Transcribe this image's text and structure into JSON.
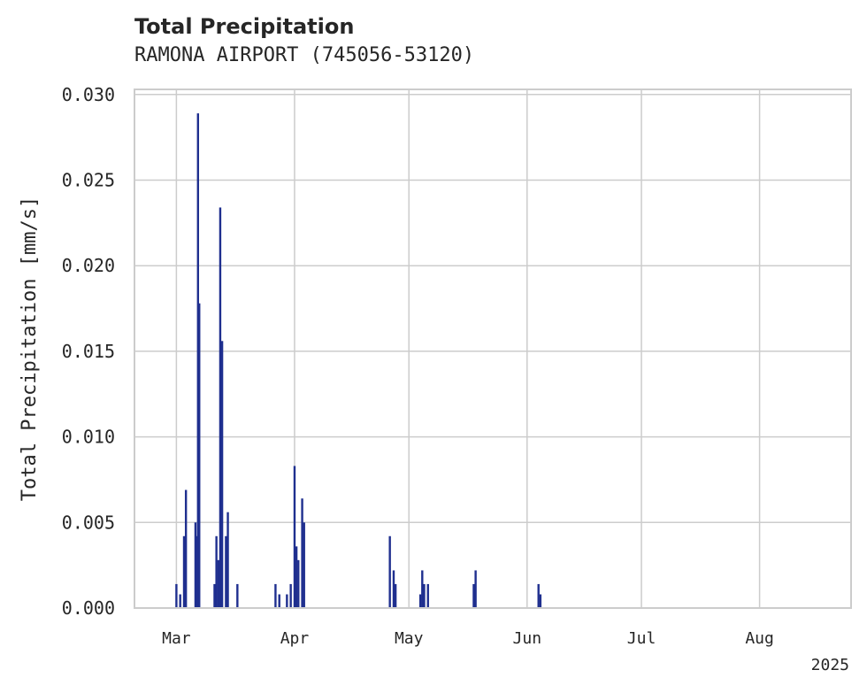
{
  "chart_data": {
    "type": "bar",
    "title": "Total Precipitation",
    "subtitle": "RAMONA AIRPORT (745056-53120)",
    "ylabel": "Total Precipitation [mm/s]",
    "xlabel": "",
    "year_label": "2025",
    "ylim": [
      0,
      0.0303
    ],
    "xlim": [
      "2025-02-18",
      "2025-08-25"
    ],
    "yticks": [
      0,
      0.005,
      0.01,
      0.015,
      0.02,
      0.025,
      0.03
    ],
    "ytick_labels": [
      "0.000",
      "0.005",
      "0.010",
      "0.015",
      "0.020",
      "0.025",
      "0.030"
    ],
    "xticks": [
      "2025-03-01",
      "2025-04-01",
      "2025-05-01",
      "2025-06-01",
      "2025-07-01",
      "2025-08-01"
    ],
    "xtick_labels": [
      "Mar",
      "Apr",
      "May",
      "Jun",
      "Jul",
      "Aug"
    ],
    "grid": true,
    "bar_color": "#1f2f8f",
    "points": [
      [
        "2025-03-01",
        0.0014
      ],
      [
        "2025-03-02",
        0.0008
      ],
      [
        "2025-03-03",
        0.0042
      ],
      [
        "2025-03-03T12",
        0.0069
      ],
      [
        "2025-03-06",
        0.005
      ],
      [
        "2025-03-06T08",
        0.0042
      ],
      [
        "2025-03-06T16",
        0.0289
      ],
      [
        "2025-03-07",
        0.0178
      ],
      [
        "2025-03-11",
        0.0014
      ],
      [
        "2025-03-11T12",
        0.0042
      ],
      [
        "2025-03-12",
        0.0028
      ],
      [
        "2025-03-12T12",
        0.0234
      ],
      [
        "2025-03-13",
        0.0156
      ],
      [
        "2025-03-14",
        0.0042
      ],
      [
        "2025-03-14T12",
        0.0056
      ],
      [
        "2025-03-17",
        0.0014
      ],
      [
        "2025-03-27",
        0.0014
      ],
      [
        "2025-03-28",
        0.0008
      ],
      [
        "2025-03-30",
        0.0008
      ],
      [
        "2025-03-31",
        0.0014
      ],
      [
        "2025-04-01",
        0.0083
      ],
      [
        "2025-04-01T12",
        0.0036
      ],
      [
        "2025-04-02",
        0.0028
      ],
      [
        "2025-04-03",
        0.0064
      ],
      [
        "2025-04-03T12",
        0.005
      ],
      [
        "2025-04-26",
        0.0042
      ],
      [
        "2025-04-27",
        0.0022
      ],
      [
        "2025-04-27T12",
        0.0014
      ],
      [
        "2025-05-04",
        0.0008
      ],
      [
        "2025-05-04T12",
        0.0022
      ],
      [
        "2025-05-05",
        0.0014
      ],
      [
        "2025-05-06",
        0.0014
      ],
      [
        "2025-05-18",
        0.0014
      ],
      [
        "2025-05-18T12",
        0.0022
      ],
      [
        "2025-06-04",
        0.0014
      ],
      [
        "2025-06-04T12",
        0.0008
      ]
    ]
  }
}
